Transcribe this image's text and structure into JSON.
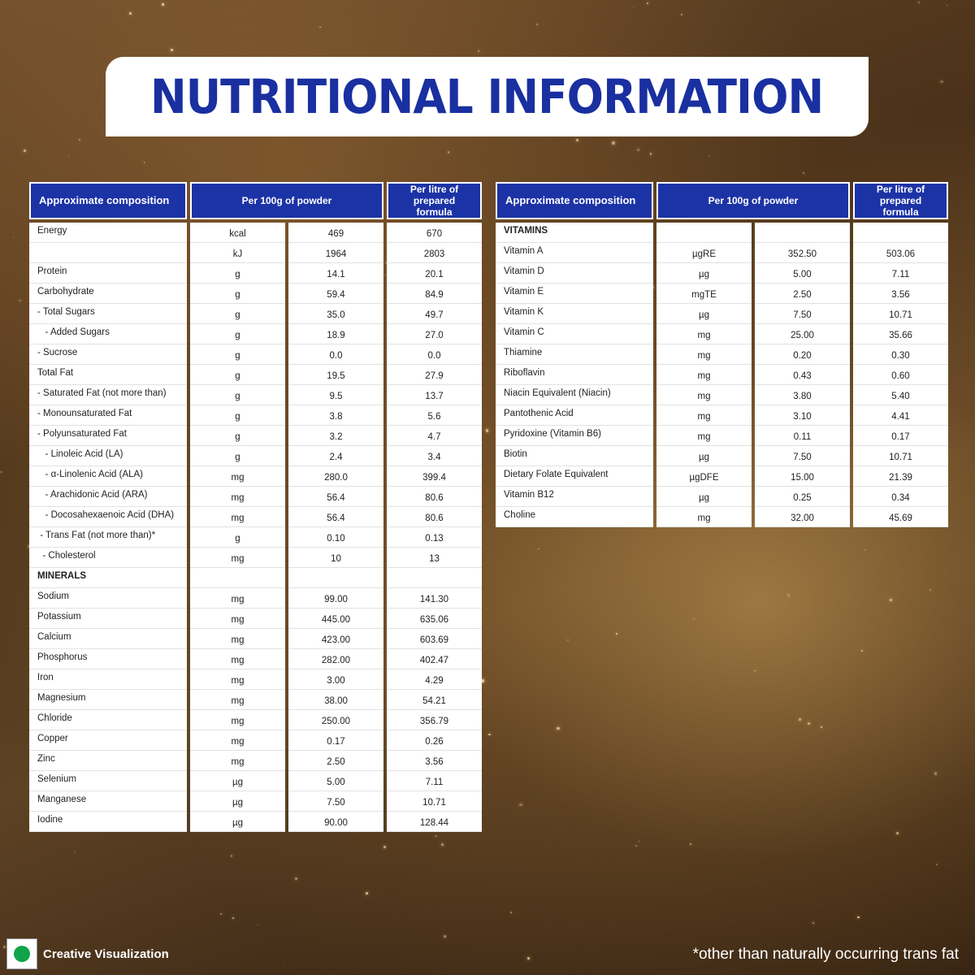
{
  "title": "NUTRITIONAL INFORMATION",
  "headers": {
    "composition": "Approximate composition",
    "per100g": "Per 100g of powder",
    "perlitre_line1": "Per litre of",
    "perlitre_line2": "prepared formula"
  },
  "left_table": [
    {
      "name": "Energy",
      "unit": "kcal",
      "per100g": "469",
      "perlitre": "670"
    },
    {
      "name": "",
      "unit": "kJ",
      "per100g": "1964",
      "perlitre": "2803"
    },
    {
      "name": "Protein",
      "unit": "g",
      "per100g": "14.1",
      "perlitre": "20.1"
    },
    {
      "name": "Carbohydrate",
      "unit": "g",
      "per100g": "59.4",
      "perlitre": "84.9"
    },
    {
      "name": "- Total Sugars",
      "unit": "g",
      "per100g": "35.0",
      "perlitre": "49.7"
    },
    {
      "name": "   - Added Sugars",
      "unit": "g",
      "per100g": "18.9",
      "perlitre": "27.0"
    },
    {
      "name": "- Sucrose",
      "unit": "g",
      "per100g": "0.0",
      "perlitre": "0.0"
    },
    {
      "name": "Total Fat",
      "unit": "g",
      "per100g": "19.5",
      "perlitre": "27.9"
    },
    {
      "name": "- Saturated Fat (not more than)",
      "unit": "g",
      "per100g": "9.5",
      "perlitre": "13.7"
    },
    {
      "name": "- Monounsaturated Fat",
      "unit": "g",
      "per100g": "3.8",
      "perlitre": "5.6"
    },
    {
      "name": "- Polyunsaturated Fat",
      "unit": "g",
      "per100g": "3.2",
      "perlitre": "4.7"
    },
    {
      "name": "   - Linoleic Acid (LA)",
      "unit": "g",
      "per100g": "2.4",
      "perlitre": "3.4"
    },
    {
      "name": "   - α-Linolenic Acid (ALA)",
      "unit": "mg",
      "per100g": "280.0",
      "perlitre": "399.4"
    },
    {
      "name": "   - Arachidonic Acid (ARA)",
      "unit": "mg",
      "per100g": "56.4",
      "perlitre": "80.6"
    },
    {
      "name": "   - Docosahexaenoic Acid (DHA)",
      "unit": "mg",
      "per100g": "56.4",
      "perlitre": "80.6"
    },
    {
      "name": " - Trans Fat (not more than)*",
      "unit": "g",
      "per100g": "0.10",
      "perlitre": "0.13"
    },
    {
      "name": "  - Cholesterol",
      "unit": "mg",
      "per100g": "10",
      "perlitre": "13"
    },
    {
      "name": "MINERALS",
      "unit": "",
      "per100g": "",
      "perlitre": "",
      "section": true
    },
    {
      "name": "Sodium",
      "unit": "mg",
      "per100g": "99.00",
      "perlitre": "141.30"
    },
    {
      "name": "Potassium",
      "unit": "mg",
      "per100g": "445.00",
      "perlitre": "635.06"
    },
    {
      "name": "Calcium",
      "unit": "mg",
      "per100g": "423.00",
      "perlitre": "603.69"
    },
    {
      "name": "Phosphorus",
      "unit": "mg",
      "per100g": "282.00",
      "perlitre": "402.47"
    },
    {
      "name": "Iron",
      "unit": "mg",
      "per100g": "3.00",
      "perlitre": "4.29"
    },
    {
      "name": "Magnesium",
      "unit": "mg",
      "per100g": "38.00",
      "perlitre": "54.21"
    },
    {
      "name": "Chloride",
      "unit": "mg",
      "per100g": "250.00",
      "perlitre": "356.79"
    },
    {
      "name": "Copper",
      "unit": "mg",
      "per100g": "0.17",
      "perlitre": "0.26"
    },
    {
      "name": "Zinc",
      "unit": "mg",
      "per100g": "2.50",
      "perlitre": "3.56"
    },
    {
      "name": "Selenium",
      "unit": "µg",
      "per100g": "5.00",
      "perlitre": "7.11"
    },
    {
      "name": "Manganese",
      "unit": "µg",
      "per100g": "7.50",
      "perlitre": "10.71"
    },
    {
      "name": "Iodine",
      "unit": "µg",
      "per100g": "90.00",
      "perlitre": "128.44"
    }
  ],
  "right_table": [
    {
      "name": "VITAMINS",
      "unit": "",
      "per100g": "",
      "perlitre": "",
      "section": true
    },
    {
      "name": "Vitamin A",
      "unit": "µgRE",
      "per100g": "352.50",
      "perlitre": "503.06"
    },
    {
      "name": "Vitamin D",
      "unit": "µg",
      "per100g": "5.00",
      "perlitre": "7.11"
    },
    {
      "name": "Vitamin E",
      "unit": "mgTE",
      "per100g": "2.50",
      "perlitre": "3.56"
    },
    {
      "name": "Vitamin K",
      "unit": "µg",
      "per100g": "7.50",
      "perlitre": "10.71"
    },
    {
      "name": "Vitamin C",
      "unit": "mg",
      "per100g": "25.00",
      "perlitre": "35.66"
    },
    {
      "name": "Thiamine",
      "unit": "mg",
      "per100g": "0.20",
      "perlitre": "0.30"
    },
    {
      "name": "Riboflavin",
      "unit": "mg",
      "per100g": "0.43",
      "perlitre": "0.60"
    },
    {
      "name": "Niacin Equivalent (Niacin)",
      "unit": "mg",
      "per100g": "3.80",
      "perlitre": "5.40"
    },
    {
      "name": "Pantothenic Acid",
      "unit": "mg",
      "per100g": "3.10",
      "perlitre": "4.41"
    },
    {
      "name": "Pyridoxine (Vitamin B6)",
      "unit": "mg",
      "per100g": "0.11",
      "perlitre": "0.17"
    },
    {
      "name": "Biotin",
      "unit": "µg",
      "per100g": "7.50",
      "perlitre": "10.71"
    },
    {
      "name": "Dietary Folate Equivalent",
      "unit": "µgDFE",
      "per100g": "15.00",
      "perlitre": "21.39"
    },
    {
      "name": "Vitamin B12",
      "unit": "µg",
      "per100g": "0.25",
      "perlitre": "0.34"
    },
    {
      "name": "Choline",
      "unit": "mg",
      "per100g": "32.00",
      "perlitre": "45.69"
    }
  ],
  "footer": {
    "left_label": "Creative Visualization",
    "right_note": "*other than naturally occurring trans fat"
  },
  "colors": {
    "header_blue": "#1c33a6",
    "title_blue": "#1a2fa0",
    "badge_green": "#11a34a"
  }
}
